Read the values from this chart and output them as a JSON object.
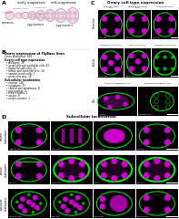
{
  "panel_A_label": "A",
  "panel_B_label": "B",
  "panel_C_label": "C",
  "panel_D_label": "D",
  "panel_A_title_left": "early oogenesis",
  "panel_A_title_right": "mid-oogenesis",
  "panel_C_title": "Ovary cell type expression",
  "panel_C_row_labels": [
    "Germline",
    "Follicle",
    "Otic"
  ],
  "panel_C_col_labels_r1": [
    "somatic nurse\ncells",
    "dividing germline\ncells",
    "epithelial cells"
  ],
  "panel_C_col_labels_r2": [
    "germline in all cells",
    "germ-cells only",
    "epithelial cells only"
  ],
  "panel_C_col_labels_r3": [
    "follicular epithelial cells",
    "squamous epithelial cells"
  ],
  "panel_C_gene_labels": [
    [
      "Pno-GFP",
      "Tkv-GFP",
      "Dco-GFP"
    ],
    [
      "Orco-GFP",
      "Baph-GFP",
      "Pkg-GFP"
    ],
    [
      "loa-GFP",
      "CG8086-GFP"
    ]
  ],
  "panel_B_title": "Ovary expression of FlyBase lines",
  "panel_B_subtitle": "Lines analyzed: 916",
  "panel_B_section1": "Ovary cell type expression",
  "panel_B_items1": [
    "All digest: 79",
    "germ-cells and epithelial cells: 43",
    "epithelial cells only: 11",
    "follicle and epithelial cells: 10",
    "somatic nurse cells: 1",
    "germ cells only: 18"
  ],
  "panel_B_section2": "Subcellular localisation",
  "panel_B_items2": [
    "nuclear: 156",
    "cytoplasm: 73",
    "cortical and membrane: 8",
    "pan-nuclear: 5",
    "mitochondria: 2",
    "oocyte: 8",
    "oocyte-nucleus: 1"
  ],
  "panel_D_title": "Subcellular localisation",
  "panel_D_row_labels": [
    "nuclear\nlocalisations",
    "cortical\nlocalisations",
    "cytoplasm\nlocalisations"
  ],
  "panel_D_col_labels": [
    [
      "nucleus of all cells",
      "nucleus of epithelial\ncells",
      "nucleus of oocyte",
      "nuclei of anterior / posterior\nnurse cells"
    ],
    [
      "apical in epithelial cells",
      "lateral border in\nnurse cells",
      "cortical in germ cells",
      "cortical in germ cells"
    ],
    [
      "particulate in nurse cells",
      "nuclei and nurse-cells aggregates",
      "oocyte enriched",
      "dorsal-anteriorly in oocyte"
    ]
  ],
  "panel_D_gene_labels": [
    [
      "Importin-GFP",
      "Expa-GFP",
      "Cyclofa-GFP",
      "Efo-GFP"
    ],
    [
      "Slgr-GFP",
      "Nos-2-GFP",
      "b-GFP",
      "Sas-GFP"
    ],
    [
      "Cortactin-GFP",
      "Mps-GFP",
      "Nrv2-GFP",
      "Dhc16F-GFP"
    ]
  ],
  "bg_color": "#ffffff",
  "micro_bg": "#050005",
  "green": "#00ee00",
  "magenta": "#cc00cc",
  "gray_green": "#33aa33"
}
